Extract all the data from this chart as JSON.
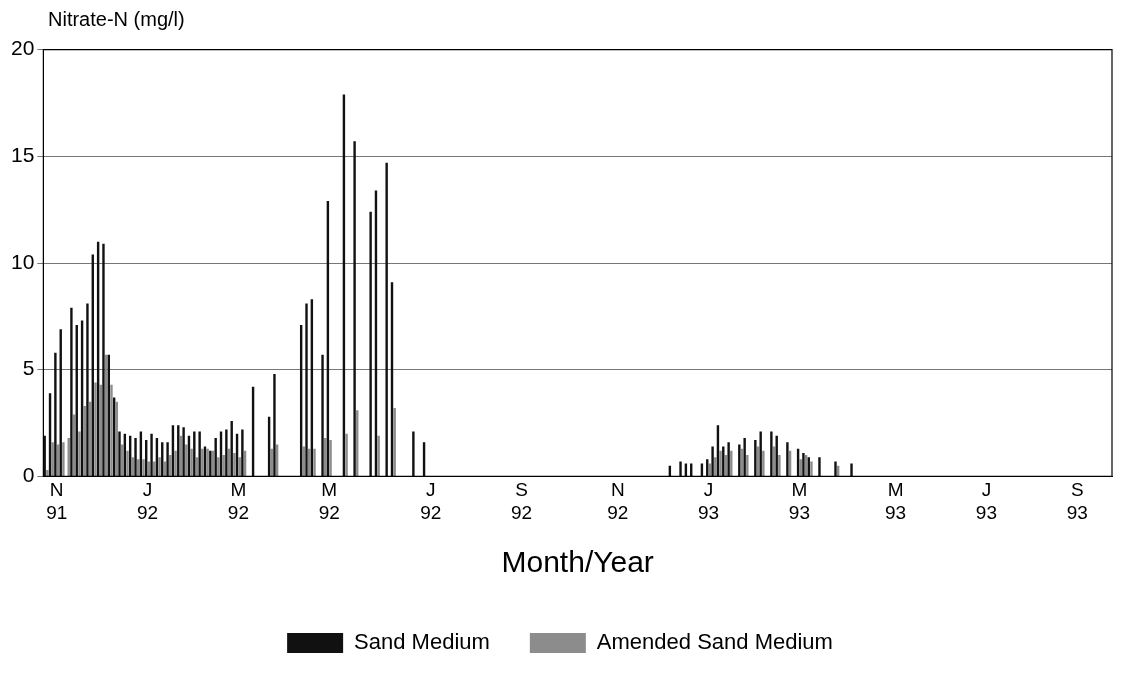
{
  "chart_data": {
    "type": "bar",
    "ylabel": "Nitrate-N (mg/l)",
    "xlabel": "Month/Year",
    "categories": [
      null,
      null,
      "N 91",
      null,
      null,
      null,
      null,
      null,
      null,
      null,
      null,
      null,
      null,
      null,
      null,
      null,
      null,
      null,
      null,
      "J 92",
      null,
      null,
      null,
      null,
      null,
      null,
      null,
      null,
      null,
      null,
      null,
      null,
      null,
      null,
      null,
      null,
      "M 92",
      null,
      null,
      null,
      null,
      null,
      null,
      null,
      null,
      null,
      null,
      null,
      null,
      null,
      null,
      null,
      null,
      "M 92",
      null,
      null,
      null,
      null,
      null,
      null,
      null,
      null,
      null,
      null,
      null,
      null,
      null,
      null,
      null,
      null,
      null,
      null,
      "J 92",
      null,
      null,
      null,
      null,
      null,
      null,
      null,
      null,
      null,
      null,
      null,
      null,
      null,
      null,
      null,
      null,
      "S 92",
      null,
      null,
      null,
      null,
      null,
      null,
      null,
      null,
      null,
      null,
      null,
      null,
      null,
      null,
      null,
      null,
      null,
      "N 92",
      null,
      null,
      null,
      null,
      null,
      null,
      null,
      null,
      null,
      null,
      null,
      null,
      null,
      null,
      null,
      null,
      "J 93",
      null,
      null,
      null,
      null,
      null,
      null,
      null,
      null,
      null,
      null,
      null,
      null,
      null,
      null,
      null,
      null,
      "M 93",
      null,
      null,
      null,
      null,
      null,
      null,
      null,
      null,
      null,
      null,
      null,
      null,
      null,
      null,
      null,
      null,
      null,
      "M 93",
      null,
      null,
      null,
      null,
      null,
      null,
      null,
      null,
      null,
      null,
      null,
      null,
      null,
      null,
      null,
      null,
      "J 93",
      null,
      null,
      null,
      null,
      null,
      null,
      null,
      null,
      null,
      null,
      null,
      null,
      null,
      null,
      null,
      null,
      "S 93",
      null,
      null,
      null,
      null,
      null,
      null
    ],
    "series": [
      {
        "name": "Sand Medium",
        "color": "#111111",
        "values": [
          1.9,
          3.9,
          5.8,
          6.9,
          null,
          7.9,
          7.1,
          7.3,
          8.1,
          10.4,
          11.0,
          10.9,
          5.7,
          3.7,
          2.1,
          2.0,
          1.9,
          1.8,
          2.1,
          1.7,
          2.0,
          1.8,
          1.6,
          1.6,
          2.4,
          2.4,
          2.3,
          1.9,
          2.1,
          2.1,
          1.4,
          1.2,
          1.8,
          2.1,
          2.2,
          2.6,
          2.0,
          2.2,
          null,
          4.2,
          null,
          null,
          2.8,
          4.8,
          null,
          null,
          null,
          null,
          7.1,
          8.1,
          8.3,
          null,
          5.7,
          12.9,
          null,
          null,
          17.9,
          null,
          15.7,
          null,
          null,
          12.4,
          13.4,
          null,
          14.7,
          9.1,
          null,
          null,
          null,
          2.1,
          null,
          1.6,
          null,
          null,
          null,
          null,
          null,
          null,
          null,
          null,
          null,
          null,
          null,
          null,
          null,
          null,
          null,
          null,
          null,
          null,
          null,
          null,
          null,
          null,
          null,
          null,
          null,
          null,
          null,
          null,
          null,
          null,
          null,
          null,
          null,
          null,
          null,
          null,
          null,
          null,
          null,
          null,
          null,
          null,
          null,
          null,
          null,
          0.5,
          null,
          0.7,
          0.6,
          0.6,
          null,
          0.6,
          0.8,
          1.4,
          2.4,
          1.4,
          1.6,
          null,
          1.5,
          1.8,
          null,
          1.7,
          2.1,
          null,
          2.1,
          1.9,
          null,
          1.6,
          null,
          1.3,
          1.1,
          0.9,
          null,
          0.9,
          null,
          null,
          0.7,
          null,
          null,
          0.6,
          null,
          null,
          null,
          null,
          null,
          null,
          null,
          null,
          null,
          null,
          null,
          null,
          null,
          null,
          null,
          null,
          null,
          null,
          null,
          null,
          null,
          null,
          null,
          null,
          null,
          null,
          null,
          null,
          null,
          null,
          null,
          null,
          null,
          null,
          null,
          null,
          null,
          null,
          null,
          null,
          null,
          null,
          null,
          null,
          null,
          null,
          null,
          null
        ]
      },
      {
        "name": "Amended Sand Medium",
        "color": "#8c8c8c",
        "values": [
          0.3,
          1.6,
          1.5,
          1.6,
          1.8,
          2.9,
          2.1,
          3.3,
          3.5,
          4.4,
          4.3,
          5.7,
          4.3,
          3.5,
          1.5,
          1.2,
          0.9,
          0.8,
          0.8,
          0.7,
          0.7,
          0.9,
          0.7,
          1.0,
          1.2,
          1.9,
          1.5,
          1.3,
          0.9,
          1.3,
          1.3,
          1.2,
          0.9,
          1.0,
          1.3,
          1.1,
          0.9,
          1.2,
          null,
          null,
          null,
          null,
          1.3,
          1.5,
          null,
          null,
          null,
          null,
          1.4,
          1.3,
          1.3,
          null,
          1.8,
          1.7,
          null,
          null,
          2.0,
          null,
          3.1,
          null,
          null,
          null,
          1.9,
          null,
          null,
          3.2,
          null,
          null,
          null,
          null,
          null,
          null,
          null,
          null,
          null,
          null,
          null,
          null,
          null,
          null,
          null,
          null,
          null,
          null,
          null,
          null,
          null,
          null,
          null,
          null,
          null,
          null,
          null,
          null,
          null,
          null,
          null,
          null,
          null,
          null,
          null,
          null,
          null,
          null,
          null,
          null,
          null,
          null,
          null,
          null,
          null,
          null,
          null,
          null,
          null,
          null,
          null,
          null,
          null,
          null,
          null,
          null,
          null,
          null,
          0.6,
          0.9,
          1.2,
          1.0,
          1.2,
          null,
          1.3,
          1.0,
          null,
          1.4,
          1.2,
          null,
          1.4,
          1.0,
          null,
          1.2,
          null,
          0.8,
          1.0,
          0.7,
          null,
          null,
          null,
          null,
          0.5,
          null,
          null,
          null,
          null,
          null,
          null,
          null,
          null,
          null,
          null,
          null,
          null,
          null,
          null,
          null,
          null,
          null,
          null,
          null,
          null,
          null,
          null,
          null,
          null,
          null,
          null,
          null,
          null,
          null,
          null,
          null,
          null,
          null,
          null,
          null,
          null,
          null,
          null,
          null,
          null,
          null,
          null,
          null,
          null,
          null,
          null,
          null,
          null,
          null,
          null,
          null
        ]
      }
    ],
    "ylim": [
      0,
      20
    ],
    "yticks": [
      0,
      5,
      10,
      15,
      20
    ],
    "grid": "y",
    "legend": "bottom"
  }
}
